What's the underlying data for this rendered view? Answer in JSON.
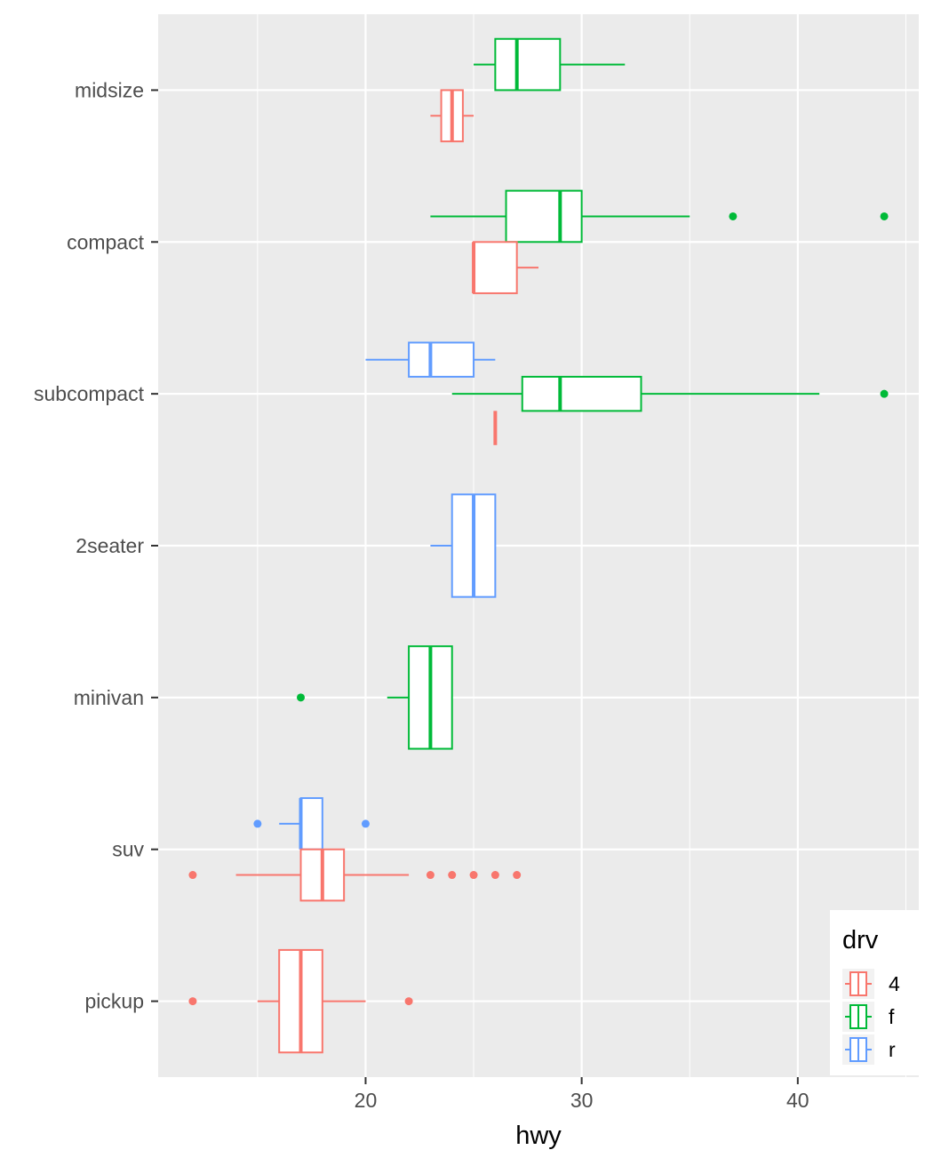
{
  "chart_data": {
    "type": "boxplot",
    "orientation": "horizontal",
    "xlabel": "hwy",
    "ylabel": "",
    "xlim": [
      10.4,
      45.6
    ],
    "x_ticks": [
      20,
      30,
      40
    ],
    "x_minor_ticks": [
      15,
      25,
      35,
      45
    ],
    "categories": [
      "pickup",
      "suv",
      "minivan",
      "2seater",
      "subcompact",
      "compact",
      "midsize"
    ],
    "legend": {
      "title": "drv",
      "position": "bottom-right",
      "entries": [
        {
          "key": "4",
          "label": "4",
          "color": "#F8766D"
        },
        {
          "key": "f",
          "label": "f",
          "color": "#00BA38"
        },
        {
          "key": "r",
          "label": "r",
          "color": "#619CFF"
        }
      ]
    },
    "boxes": [
      {
        "category": "midsize",
        "drv": "f",
        "dodge": 0,
        "n_groups": 2,
        "lower_whisker": 25,
        "q1": 26,
        "median": 27,
        "q3": 29,
        "upper_whisker": 32,
        "outliers": []
      },
      {
        "category": "midsize",
        "drv": "4",
        "dodge": 1,
        "n_groups": 2,
        "lower_whisker": 23,
        "q1": 23.5,
        "median": 24,
        "q3": 24.5,
        "upper_whisker": 25,
        "outliers": []
      },
      {
        "category": "compact",
        "drv": "f",
        "dodge": 0,
        "n_groups": 2,
        "lower_whisker": 23,
        "q1": 26.5,
        "median": 29,
        "q3": 30,
        "upper_whisker": 35,
        "outliers": [
          37,
          44
        ]
      },
      {
        "category": "compact",
        "drv": "4",
        "dodge": 1,
        "n_groups": 2,
        "lower_whisker": 25,
        "q1": 25,
        "median": 25,
        "q3": 27,
        "upper_whisker": 28,
        "outliers": []
      },
      {
        "category": "subcompact",
        "drv": "r",
        "dodge": 0,
        "n_groups": 3,
        "lower_whisker": 20,
        "q1": 22,
        "median": 23,
        "q3": 25,
        "upper_whisker": 26,
        "outliers": []
      },
      {
        "category": "subcompact",
        "drv": "f",
        "dodge": 1,
        "n_groups": 3,
        "lower_whisker": 24,
        "q1": 27.25,
        "median": 29,
        "q3": 32.75,
        "upper_whisker": 41,
        "outliers": [
          44
        ]
      },
      {
        "category": "subcompact",
        "drv": "4",
        "dodge": 2,
        "n_groups": 3,
        "lower_whisker": 26,
        "q1": 26,
        "median": 26,
        "q3": 26,
        "upper_whisker": 26,
        "outliers": []
      },
      {
        "category": "2seater",
        "drv": "r",
        "dodge": 0,
        "n_groups": 1,
        "lower_whisker": 23,
        "q1": 24,
        "median": 25,
        "q3": 26,
        "upper_whisker": 26,
        "outliers": []
      },
      {
        "category": "minivan",
        "drv": "f",
        "dodge": 0,
        "n_groups": 1,
        "lower_whisker": 21,
        "q1": 22,
        "median": 23,
        "q3": 24,
        "upper_whisker": 24,
        "outliers": [
          17
        ]
      },
      {
        "category": "suv",
        "drv": "r",
        "dodge": 0,
        "n_groups": 2,
        "lower_whisker": 16,
        "q1": 17,
        "median": 17,
        "q3": 18,
        "upper_whisker": 18,
        "outliers": [
          15,
          20
        ]
      },
      {
        "category": "suv",
        "drv": "4",
        "dodge": 1,
        "n_groups": 2,
        "lower_whisker": 14,
        "q1": 17,
        "median": 18,
        "q3": 19,
        "upper_whisker": 22,
        "outliers": [
          12,
          23,
          24,
          25,
          26,
          27
        ]
      },
      {
        "category": "pickup",
        "drv": "4",
        "dodge": 0,
        "n_groups": 1,
        "lower_whisker": 15,
        "q1": 16,
        "median": 17,
        "q3": 18,
        "upper_whisker": 20,
        "outliers": [
          12,
          22
        ]
      }
    ]
  }
}
